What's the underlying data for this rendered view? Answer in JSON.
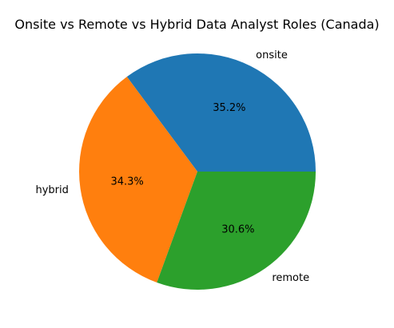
{
  "chart_data": {
    "type": "pie",
    "title": "Onsite vs Remote vs Hybrid Data Analyst Roles (Canada)",
    "categories": [
      "onsite",
      "hybrid",
      "remote"
    ],
    "values": [
      35.2,
      34.3,
      30.6
    ],
    "value_labels": [
      "35.2%",
      "34.3%",
      "30.6%"
    ],
    "colors": [
      "#1f77b4",
      "#ff7f0e",
      "#2ca02c"
    ],
    "start_angle_deg": 0,
    "direction": "counterclockwise",
    "legend": "none"
  }
}
